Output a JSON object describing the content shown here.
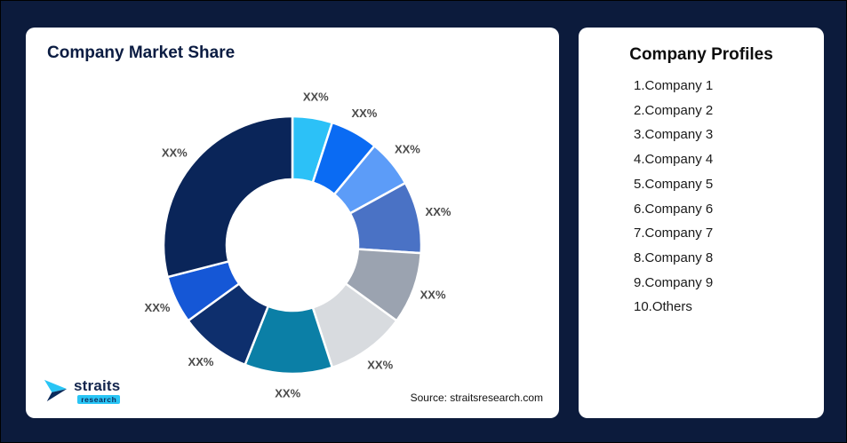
{
  "page": {
    "background": "#0C1B3C"
  },
  "market_share_card": {
    "title": "Company Market Share",
    "source": "Source: straitsresearch.com",
    "logo": {
      "brand": "straits",
      "sub": "research"
    }
  },
  "profiles_card": {
    "title": "Company Profiles",
    "items": [
      "1.Company 1",
      "2.Company 2",
      "3.Company 3",
      "4.Company 4",
      "5.Company 5",
      "6.Company 6",
      "7.Company 7",
      "8.Company 8",
      "9.Company 9",
      "10.Others"
    ]
  },
  "chart_data": {
    "type": "pie",
    "variant": "donut",
    "title": "Company Market Share",
    "unit": "%",
    "start_angle_deg": 0,
    "direction": "clockwise",
    "inner_radius_ratio": 0.51,
    "legend_position": "none",
    "segments": [
      {
        "id": 1,
        "label": "XX%",
        "value": 5,
        "color": "#2CC1F7"
      },
      {
        "id": 2,
        "label": "XX%",
        "value": 6,
        "color": "#0A6BF3"
      },
      {
        "id": 3,
        "label": "XX%",
        "value": 6,
        "color": "#5C9CF8"
      },
      {
        "id": 4,
        "label": "XX%",
        "value": 9,
        "color": "#4A72C5"
      },
      {
        "id": 5,
        "label": "XX%",
        "value": 9,
        "color": "#9BA3B0"
      },
      {
        "id": 6,
        "label": "XX%",
        "value": 10,
        "color": "#D8DBDF"
      },
      {
        "id": 7,
        "label": "XX%",
        "value": 11,
        "color": "#0B7FA6"
      },
      {
        "id": 8,
        "label": "XX%",
        "value": 9,
        "color": "#0E2F6D"
      },
      {
        "id": 9,
        "label": "XX%",
        "value": 6,
        "color": "#1557D6"
      },
      {
        "id": 10,
        "label": "XX%",
        "value": 29,
        "color": "#0A2559"
      }
    ]
  }
}
